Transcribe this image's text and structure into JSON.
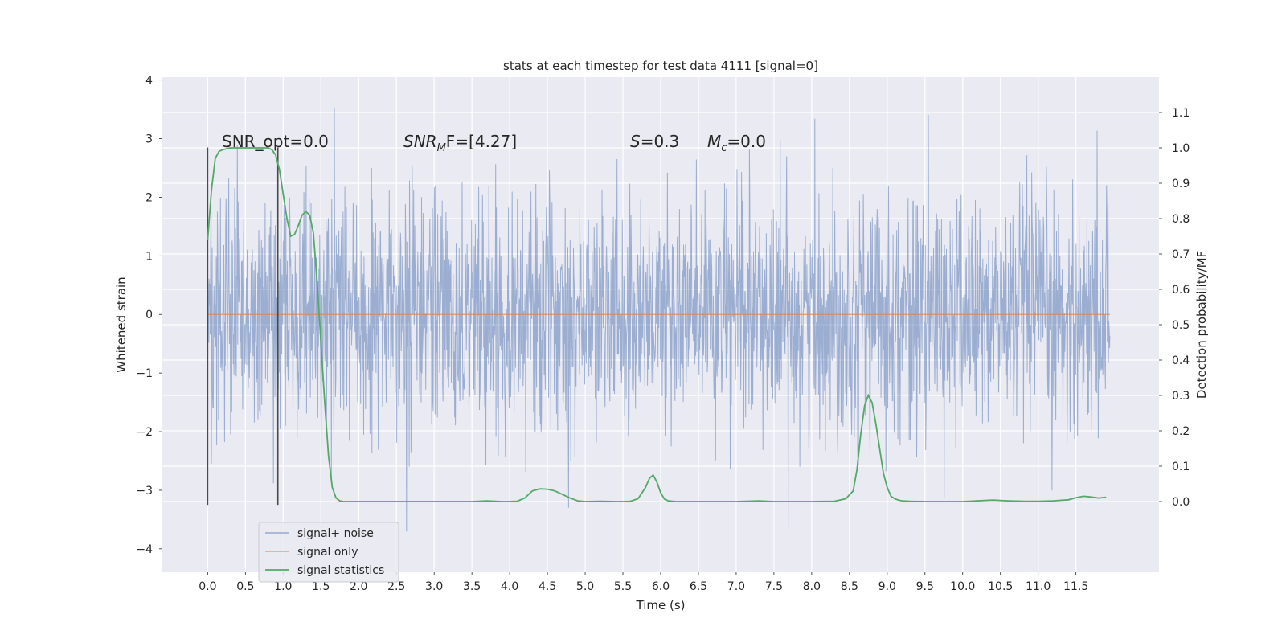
{
  "chart_data": {
    "type": "line",
    "title": "stats at each timestep for test data 4111 [signal=0]",
    "xlabel": "Time (s)",
    "ylabel": "Whitened strain",
    "ylabel_right": "Detection probability/MF",
    "xlim": [
      -0.6,
      12.6
    ],
    "ylim": [
      -4.4,
      4.05
    ],
    "ylim_right": [
      -0.2,
      1.2
    ],
    "x_ticks": [
      "0.0",
      "0.5",
      "1.0",
      "1.5",
      "2.0",
      "2.5",
      "3.0",
      "3.5",
      "4.0",
      "4.5",
      "5.0",
      "5.5",
      "6.0",
      "6.5",
      "7.0",
      "7.5",
      "8.0",
      "8.5",
      "9.0",
      "9.5",
      "10.0",
      "10.5",
      "11.0",
      "11.5"
    ],
    "y_ticks": [
      "4",
      "3",
      "2",
      "1",
      "0",
      "−1",
      "−2",
      "−3",
      "−4"
    ],
    "y_right_ticks": [
      "1.1",
      "1.0",
      "0.9",
      "0.8",
      "0.7",
      "0.6",
      "0.5",
      "0.4",
      "0.3",
      "0.2",
      "0.1",
      "0.0"
    ],
    "grid": true,
    "legend_position": "lower-left",
    "annotations": {
      "snr_opt": "SNR_opt=0.0",
      "snr_mf_prefix": "SNR",
      "snr_mf_sub": "M",
      "snr_mf_suffix": "F=[4.27]",
      "s_var": "S",
      "s_val": "=0.3",
      "mc_var": "M",
      "mc_sub": "c",
      "mc_val": "=0.0"
    },
    "vlines": [
      0.0,
      0.93
    ],
    "series": [
      {
        "name": "signal+ noise",
        "color": "#4c72b0",
        "description_range": [
          0,
          11.95
        ],
        "y_band": [
          -4.1,
          3.65
        ]
      },
      {
        "name": "signal only",
        "color": "#dd8452",
        "x": [
          0,
          11.95
        ],
        "y": [
          0,
          0
        ]
      },
      {
        "name": "signal statistics",
        "color": "#55a868",
        "x": [
          0.0,
          0.05,
          0.1,
          0.15,
          0.2,
          0.3,
          0.4,
          0.5,
          0.6,
          0.7,
          0.8,
          0.85,
          0.9,
          0.95,
          1.0,
          1.05,
          1.1,
          1.15,
          1.2,
          1.25,
          1.3,
          1.35,
          1.4,
          1.45,
          1.5,
          1.55,
          1.6,
          1.65,
          1.7,
          1.75,
          1.8,
          1.9,
          2.0,
          2.5,
          3.0,
          3.5,
          3.7,
          3.9,
          4.0,
          4.1,
          4.2,
          4.3,
          4.4,
          4.5,
          4.6,
          4.7,
          4.8,
          4.9,
          5.0,
          5.2,
          5.4,
          5.5,
          5.6,
          5.7,
          5.8,
          5.85,
          5.9,
          5.95,
          6.0,
          6.05,
          6.1,
          6.2,
          6.5,
          7.0,
          7.3,
          7.5,
          8.0,
          8.3,
          8.45,
          8.55,
          8.6,
          8.65,
          8.7,
          8.75,
          8.8,
          8.85,
          8.9,
          8.95,
          9.0,
          9.05,
          9.1,
          9.15,
          9.2,
          9.3,
          9.5,
          10.0,
          10.4,
          10.6,
          10.8,
          11.0,
          11.2,
          11.4,
          11.5,
          11.6,
          11.7,
          11.8,
          11.9
        ],
        "y": [
          0.74,
          0.88,
          0.97,
          0.99,
          0.995,
          1.0,
          1.0,
          1.0,
          1.0,
          1.0,
          1.0,
          0.995,
          0.98,
          0.94,
          0.87,
          0.8,
          0.75,
          0.755,
          0.78,
          0.81,
          0.82,
          0.81,
          0.76,
          0.62,
          0.45,
          0.28,
          0.13,
          0.04,
          0.01,
          0.002,
          0.0,
          0.0,
          0.0,
          0.0,
          0.0,
          0.0,
          0.002,
          0.0,
          0.0,
          0.001,
          0.01,
          0.03,
          0.036,
          0.035,
          0.03,
          0.02,
          0.01,
          0.002,
          0.0,
          0.001,
          0.0,
          0.0,
          0.001,
          0.008,
          0.04,
          0.065,
          0.075,
          0.055,
          0.025,
          0.007,
          0.002,
          0.0,
          0.0,
          0.0,
          0.002,
          0.0,
          0.0,
          0.001,
          0.008,
          0.03,
          0.09,
          0.19,
          0.27,
          0.3,
          0.28,
          0.22,
          0.15,
          0.08,
          0.04,
          0.015,
          0.008,
          0.004,
          0.002,
          0.001,
          0.0,
          0.0,
          0.004,
          0.002,
          0.001,
          0.001,
          0.002,
          0.005,
          0.011,
          0.015,
          0.013,
          0.01,
          0.012
        ]
      }
    ]
  }
}
